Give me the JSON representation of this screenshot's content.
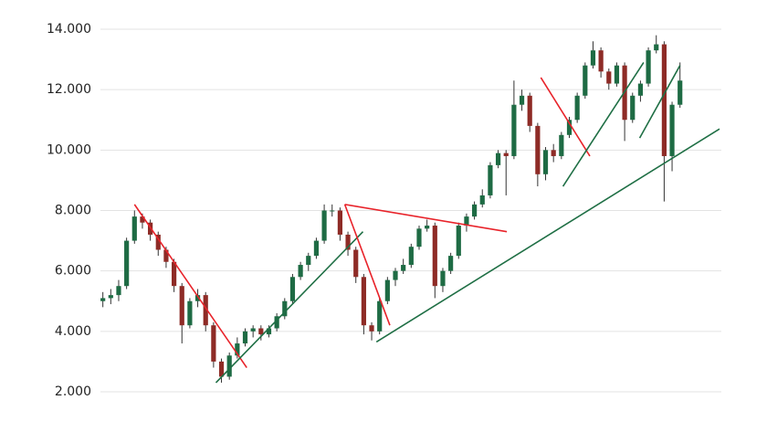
{
  "chart_data": {
    "type": "candlestick",
    "up_color": "#1e6b44",
    "down_color": "#8e2b26",
    "wick_color": "#333333",
    "grid": true,
    "xlim": [
      -1,
      78
    ],
    "ylim": [
      2000,
      14000
    ],
    "yticks": [
      {
        "value": 2000,
        "label": "2.000"
      },
      {
        "value": 4000,
        "label": "4.000"
      },
      {
        "value": 6000,
        "label": "6.000"
      },
      {
        "value": 8000,
        "label": "8.000"
      },
      {
        "value": 10000,
        "label": "10.000"
      },
      {
        "value": 12000,
        "label": "12.000"
      },
      {
        "value": 14000,
        "label": "14.000"
      }
    ],
    "open": [
      5000,
      5100,
      5200,
      5500,
      7000,
      7800,
      7600,
      7200,
      6700,
      6300,
      5500,
      4200,
      5000,
      5200,
      4200,
      3000,
      2500,
      3200,
      3600,
      4000,
      4100,
      3900,
      4100,
      4500,
      5000,
      5800,
      6200,
      6500,
      7000,
      8000,
      8000,
      7200,
      6700,
      5800,
      4200,
      4000,
      5000,
      5700,
      6000,
      6200,
      6800,
      7400,
      7500,
      5500,
      6000,
      6500,
      7500,
      7800,
      8200,
      8500,
      9500,
      9900,
      9800,
      11500,
      11800,
      10800,
      9200,
      10000,
      9800,
      10500,
      11000,
      11800,
      12800,
      13300,
      12600,
      12200,
      12800,
      11000,
      11800,
      12200,
      13300,
      13500,
      9800,
      11500
    ],
    "high": [
      5300,
      5400,
      5700,
      7100,
      8000,
      7900,
      7700,
      7300,
      6800,
      6400,
      5600,
      5100,
      5400,
      5300,
      4300,
      3100,
      3300,
      3800,
      4100,
      4200,
      4200,
      4200,
      4600,
      5100,
      5900,
      6300,
      6600,
      7100,
      8200,
      8200,
      8100,
      7300,
      6800,
      5900,
      4300,
      5100,
      5800,
      6100,
      6400,
      6900,
      7500,
      7700,
      7600,
      6100,
      6600,
      7600,
      7900,
      8300,
      8700,
      9600,
      10000,
      10000,
      12300,
      12000,
      11900,
      10900,
      10100,
      10200,
      10600,
      11100,
      11900,
      12900,
      13600,
      13400,
      12700,
      12900,
      12900,
      11900,
      12300,
      13400,
      13800,
      13600,
      11600,
      12900
    ],
    "low": [
      4800,
      4900,
      5000,
      5400,
      6900,
      7400,
      7000,
      6500,
      6100,
      5300,
      3600,
      4100,
      4800,
      4000,
      2800,
      2300,
      2400,
      3100,
      3500,
      3800,
      3700,
      3800,
      4000,
      4400,
      4900,
      5700,
      6000,
      6400,
      6900,
      7800,
      7000,
      6500,
      5600,
      3900,
      3700,
      3900,
      4900,
      5500,
      5900,
      6100,
      6700,
      7300,
      5100,
      5300,
      5900,
      6400,
      7300,
      7700,
      8100,
      8400,
      9400,
      8500,
      9700,
      11300,
      10600,
      8800,
      9000,
      9600,
      9700,
      10400,
      10900,
      11700,
      12700,
      12400,
      12000,
      12100,
      10300,
      10900,
      11600,
      12100,
      13200,
      8300,
      9300,
      11400
    ],
    "close": [
      5100,
      5200,
      5500,
      7000,
      7800,
      7600,
      7200,
      6700,
      6300,
      5500,
      4200,
      5000,
      5200,
      4200,
      3000,
      2500,
      3200,
      3600,
      4000,
      4100,
      3900,
      4100,
      4500,
      5000,
      5800,
      6200,
      6500,
      7000,
      8000,
      8000,
      7200,
      6700,
      5800,
      4200,
      4000,
      5000,
      5700,
      6000,
      6200,
      6800,
      7400,
      7500,
      5500,
      6000,
      6500,
      7500,
      7800,
      8200,
      8500,
      9500,
      9900,
      9800,
      11500,
      11800,
      10800,
      9200,
      10000,
      9800,
      10500,
      11000,
      11800,
      12800,
      13300,
      12600,
      12200,
      12800,
      11000,
      11800,
      12200,
      13300,
      13500,
      9800,
      11500,
      12300
    ],
    "trendlines": [
      {
        "color": "#e8232a",
        "x": [
          4.0,
          18.2
        ],
        "y": [
          8200,
          2800
        ]
      },
      {
        "color": "#1f6f45",
        "x": [
          14.3,
          32.9
        ],
        "y": [
          2300,
          7300
        ]
      },
      {
        "color": "#e8232a",
        "x": [
          30.6,
          36.3
        ],
        "y": [
          8200,
          4200
        ]
      },
      {
        "color": "#e8232a",
        "x": [
          30.6,
          51.1
        ],
        "y": [
          8200,
          7300
        ]
      },
      {
        "color": "#1f6f45",
        "x": [
          34.6,
          78.0
        ],
        "y": [
          3650,
          10700
        ]
      },
      {
        "color": "#e8232a",
        "x": [
          55.4,
          61.6
        ],
        "y": [
          12400,
          9800
        ]
      },
      {
        "color": "#1f6f45",
        "x": [
          58.2,
          68.4
        ],
        "y": [
          8800,
          12900
        ]
      },
      {
        "color": "#1f6f45",
        "x": [
          67.9,
          73.0
        ],
        "y": [
          10400,
          12800
        ]
      }
    ]
  }
}
